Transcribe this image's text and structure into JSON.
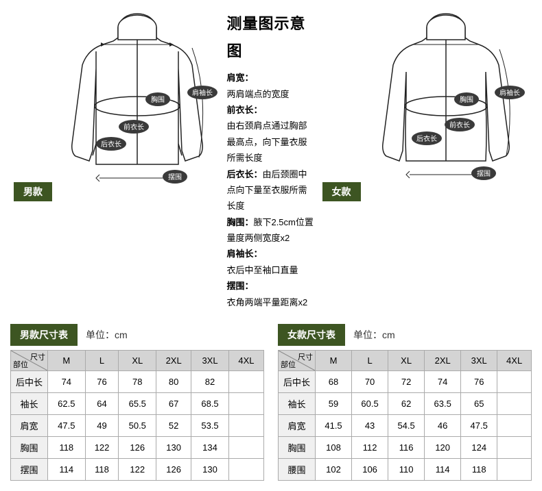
{
  "top": {
    "male_tag": "男款",
    "female_tag": "女款",
    "title": "测量图示意图",
    "sections": [
      {
        "label": "肩宽：",
        "text": "两肩端点的宽度"
      },
      {
        "label": "前衣长：",
        "text": "由右颈肩点通过胸部最高点，向下量衣服所需长度"
      },
      {
        "label": "后衣长：",
        "text_inline": "由后颈圈中点向下量至衣服所需长度"
      },
      {
        "label": "胸围：",
        "text_inline": "腋下2.5cm位置量度两侧宽度x2"
      },
      {
        "label": "肩袖长：",
        "text": "衣后中至袖口直量"
      },
      {
        "label": "摆围：",
        "text": "衣角两端平量距离x2"
      }
    ],
    "diagram_labels": {
      "chest": "胸围",
      "front_length": "前衣长",
      "back_length": "后衣长",
      "hem": "摆围",
      "sleeve": "肩袖长"
    }
  },
  "tables": {
    "male": {
      "title": "男款尺寸表",
      "unit": "单位：cm",
      "corner_top": "尺寸",
      "corner_bot": "部位",
      "cols": [
        "M",
        "L",
        "XL",
        "2XL",
        "3XL",
        "4XL"
      ],
      "rows": [
        {
          "label": "后中长",
          "vals": [
            "74",
            "76",
            "78",
            "80",
            "82",
            ""
          ]
        },
        {
          "label": "袖长",
          "vals": [
            "62.5",
            "64",
            "65.5",
            "67",
            "68.5",
            ""
          ]
        },
        {
          "label": "肩宽",
          "vals": [
            "47.5",
            "49",
            "50.5",
            "52",
            "53.5",
            ""
          ]
        },
        {
          "label": "胸围",
          "vals": [
            "118",
            "122",
            "126",
            "130",
            "134",
            ""
          ]
        },
        {
          "label": "摆围",
          "vals": [
            "114",
            "118",
            "122",
            "126",
            "130",
            ""
          ]
        }
      ]
    },
    "female": {
      "title": "女款尺寸表",
      "unit": "单位：cm",
      "corner_top": "尺寸",
      "corner_bot": "部位",
      "cols": [
        "M",
        "L",
        "XL",
        "2XL",
        "3XL",
        "4XL"
      ],
      "rows": [
        {
          "label": "后中长",
          "vals": [
            "68",
            "70",
            "72",
            "74",
            "76",
            ""
          ]
        },
        {
          "label": "袖长",
          "vals": [
            "59",
            "60.5",
            "62",
            "63.5",
            "65",
            ""
          ]
        },
        {
          "label": "肩宽",
          "vals": [
            "41.5",
            "43",
            "54.5",
            "46",
            "47.5",
            ""
          ]
        },
        {
          "label": "胸围",
          "vals": [
            "108",
            "112",
            "116",
            "120",
            "124",
            ""
          ]
        },
        {
          "label": "腰围",
          "vals": [
            "102",
            "106",
            "110",
            "114",
            "118",
            ""
          ]
        }
      ]
    }
  },
  "colors": {
    "tag_bg": "#3d5522",
    "header_bg": "#d4d4d4",
    "border": "#aaaaaa"
  }
}
